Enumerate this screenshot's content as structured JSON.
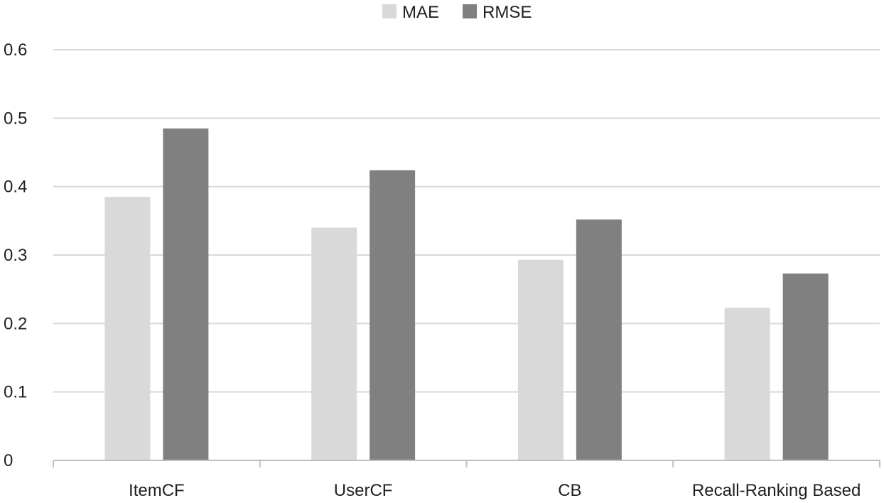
{
  "chart_data": {
    "type": "bar",
    "categories": [
      "ItemCF",
      "UserCF",
      "CB",
      "Recall-Ranking Based"
    ],
    "series": [
      {
        "name": "MAE",
        "values": [
          0.385,
          0.34,
          0.293,
          0.223
        ],
        "color": "#d9d9d9"
      },
      {
        "name": "RMSE",
        "values": [
          0.485,
          0.424,
          0.352,
          0.273
        ],
        "color": "#808080"
      }
    ],
    "title": "",
    "xlabel": "",
    "ylabel": "",
    "ylim": [
      0,
      0.6
    ],
    "yticks": [
      0,
      0.1,
      0.2,
      0.3,
      0.4,
      0.5,
      0.6
    ],
    "ytick_labels": [
      "0",
      "0.1",
      "0.2",
      "0.3",
      "0.4",
      "0.5",
      "0.6"
    ],
    "grid": true,
    "legend_position": "top-center",
    "gridline_color": "#d9d9d9",
    "axis_color": "#bfbfbf"
  }
}
